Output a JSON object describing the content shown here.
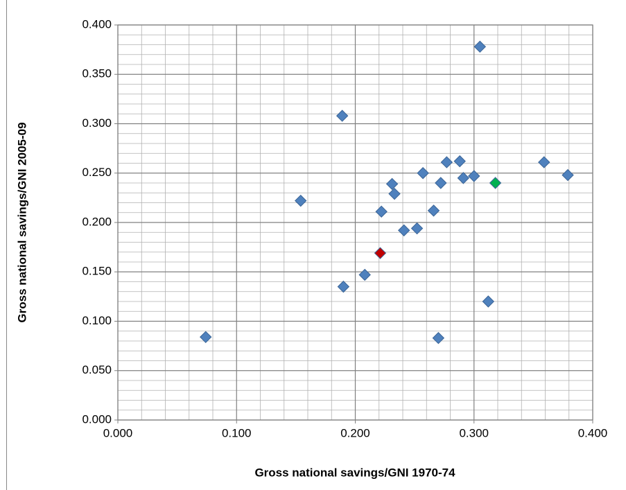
{
  "chart_data": {
    "type": "scatter",
    "x_label": "Gross national savings/GNI 1970-74",
    "y_label": "Gross national savings/GNI 2005-09",
    "series": [
      {
        "color": "#4f81bd",
        "x": [
          0.074,
          0.154,
          0.189,
          0.19,
          0.208,
          0.222,
          0.231,
          0.233,
          0.241,
          0.252,
          0.257,
          0.266,
          0.27,
          0.272,
          0.277,
          0.288,
          0.291,
          0.3,
          0.305,
          0.312,
          0.359,
          0.379
        ],
        "values": [
          0.084,
          0.222,
          0.308,
          0.135,
          0.147,
          0.211,
          0.239,
          0.229,
          0.192,
          0.194,
          0.25,
          0.212,
          0.083,
          0.24,
          0.261,
          0.262,
          0.245,
          0.247,
          0.378,
          0.12,
          0.261,
          0.248
        ]
      },
      {
        "color": "#c00000",
        "x": [
          0.221
        ],
        "values": [
          0.169
        ]
      },
      {
        "color": "#00b050",
        "x": [
          0.318
        ],
        "values": [
          0.24
        ]
      }
    ],
    "xlim": [
      0,
      0.4
    ],
    "xticks": [
      {
        "value": 0,
        "label": "0.000"
      },
      {
        "value": 0.1,
        "label": "0.100"
      },
      {
        "value": 0.2,
        "label": "0.200"
      },
      {
        "value": 0.3,
        "label": "0.300"
      },
      {
        "value": 0.4,
        "label": "0.400"
      }
    ],
    "ylim": [
      0,
      0.4
    ],
    "yticks": [
      {
        "value": 0,
        "label": "0.000"
      },
      {
        "value": 0.05,
        "label": "0.050"
      },
      {
        "value": 0.1,
        "label": "0.100"
      },
      {
        "value": 0.15,
        "label": "0.150"
      },
      {
        "value": 0.2,
        "label": "0.200"
      },
      {
        "value": 0.25,
        "label": "0.250"
      },
      {
        "value": 0.3,
        "label": "0.300"
      },
      {
        "value": 0.35,
        "label": "0.350"
      },
      {
        "value": 0.4,
        "label": "0.400"
      }
    ],
    "grid": true,
    "minor_grid_divisions": {
      "x": 5,
      "y": 5
    }
  }
}
